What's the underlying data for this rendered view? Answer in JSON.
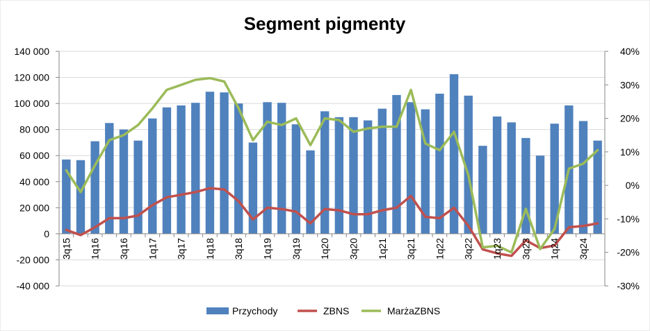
{
  "chart_data": {
    "type": "bar",
    "title": "Segment pigmenty",
    "xlabel": "",
    "ylabel": "",
    "ylim": [
      -40000,
      140000
    ],
    "y2lim": [
      -0.3,
      0.4
    ],
    "y_ticks": [
      "140 000",
      "120 000",
      "100 000",
      "80 000",
      "60 000",
      "40 000",
      "20 000",
      "0",
      "-20 000",
      "-40 000"
    ],
    "y2_ticks": [
      "40%",
      "30%",
      "20%",
      "10%",
      "0%",
      "-10%",
      "-20%",
      "-30%"
    ],
    "x_tick_labels": [
      "3q15",
      "1q16",
      "3q16",
      "1q17",
      "3q17",
      "1q18",
      "3q18",
      "1q19",
      "3q19",
      "1q20",
      "3q20",
      "1q21",
      "3q21",
      "1q22",
      "3q22",
      "1q23",
      "3q23",
      "1q24",
      "3q24"
    ],
    "categories": [
      "3q15",
      "4q15",
      "1q16",
      "2q16",
      "3q16",
      "4q16",
      "1q17",
      "2q17",
      "3q17",
      "4q17",
      "1q18",
      "2q18",
      "3q18",
      "4q18",
      "1q19",
      "2q19",
      "3q19",
      "4q19",
      "1q20",
      "2q20",
      "3q20",
      "4q20",
      "1q21",
      "2q21",
      "3q21",
      "4q21",
      "1q22",
      "2q22",
      "3q22",
      "4q22",
      "1q23",
      "2q23",
      "3q23",
      "4q23",
      "1q24",
      "2q24",
      "3q24",
      "4q24"
    ],
    "grid": true,
    "legend_position": "bottom",
    "series": [
      {
        "name": "Przychody",
        "type": "bar",
        "axis": "left",
        "color": "#4F81BD",
        "values": [
          57000,
          56500,
          71000,
          85000,
          80000,
          71500,
          88500,
          97000,
          98500,
          100500,
          109000,
          108500,
          100000,
          70000,
          101000,
          100500,
          84000,
          64000,
          94000,
          89500,
          89500,
          87000,
          96000,
          106500,
          101000,
          95500,
          107500,
          122500,
          106000,
          67500,
          90000,
          85500,
          73500,
          60000,
          84500,
          98500,
          86500,
          71500
        ]
      },
      {
        "name": "ZBNS",
        "type": "line",
        "axis": "left",
        "color": "#C0504D",
        "values": [
          3000,
          -1000,
          5000,
          12000,
          12000,
          14000,
          22000,
          28000,
          30000,
          32000,
          35000,
          34000,
          25000,
          11000,
          20000,
          19000,
          17000,
          8000,
          19000,
          18000,
          15000,
          15000,
          18000,
          20000,
          29000,
          13000,
          12000,
          20000,
          6000,
          -12000,
          -15000,
          -17000,
          -5000,
          -11000,
          -9000,
          5000,
          6000,
          8000
        ]
      },
      {
        "name": "MarżaZBNS",
        "type": "line",
        "axis": "right",
        "color": "#9BBB59",
        "values": [
          0.045,
          -0.02,
          0.06,
          0.135,
          0.15,
          0.18,
          0.23,
          0.285,
          0.3,
          0.315,
          0.32,
          0.31,
          0.23,
          0.135,
          0.19,
          0.18,
          0.2,
          0.12,
          0.2,
          0.195,
          0.16,
          0.17,
          0.175,
          0.175,
          0.285,
          0.125,
          0.105,
          0.16,
          0.03,
          -0.185,
          -0.18,
          -0.2,
          -0.07,
          -0.19,
          -0.13,
          0.05,
          0.065,
          0.105
        ]
      }
    ]
  }
}
